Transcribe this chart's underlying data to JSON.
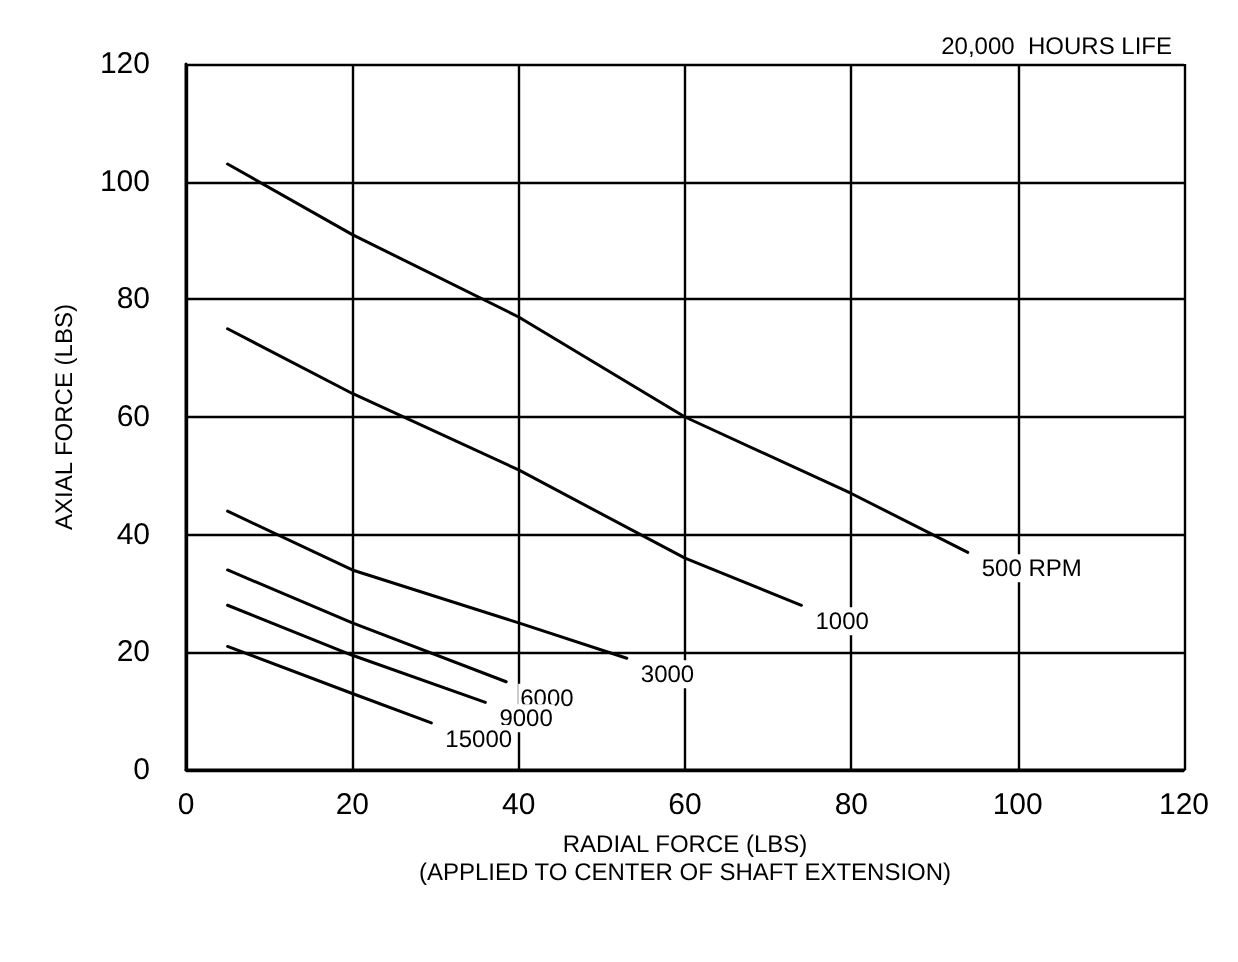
{
  "chart_data": {
    "type": "line",
    "title": "20,000  HOURS LIFE",
    "xlabel": "RADIAL FORCE (LBS)\n(APPLIED TO CENTER OF SHAFT EXTENSION)",
    "ylabel": "AXIAL FORCE (LBS)",
    "xlim": [
      0,
      120
    ],
    "xticks": [
      0,
      20,
      40,
      60,
      80,
      100,
      120
    ],
    "ylim": [
      0,
      120
    ],
    "yticks": [
      0,
      20,
      40,
      60,
      80,
      100,
      120
    ],
    "grid": true,
    "legend": false,
    "marker": "none",
    "line_style": "solid",
    "series": [
      {
        "name": "500 RPM",
        "color": "#000000",
        "x": [
          5,
          20,
          40,
          60,
          80,
          94
        ],
        "values": [
          103,
          91,
          77,
          60,
          47,
          37
        ]
      },
      {
        "name": "1000",
        "color": "#000000",
        "x": [
          5,
          20,
          40,
          60,
          74
        ],
        "values": [
          75,
          64,
          51,
          36,
          28
        ]
      },
      {
        "name": "3000",
        "color": "#000000",
        "x": [
          5,
          20,
          40,
          53
        ],
        "values": [
          44,
          34,
          25,
          19
        ]
      },
      {
        "name": "6000",
        "color": "#000000",
        "x": [
          5,
          20,
          38.5
        ],
        "values": [
          34,
          25,
          15
        ]
      },
      {
        "name": "9000",
        "color": "#000000",
        "x": [
          5,
          20,
          36
        ],
        "values": [
          28,
          19.5,
          11.5
        ]
      },
      {
        "name": "15000",
        "color": "#000000",
        "x": [
          5,
          20,
          29.5
        ],
        "values": [
          21,
          13,
          8
        ]
      }
    ]
  }
}
